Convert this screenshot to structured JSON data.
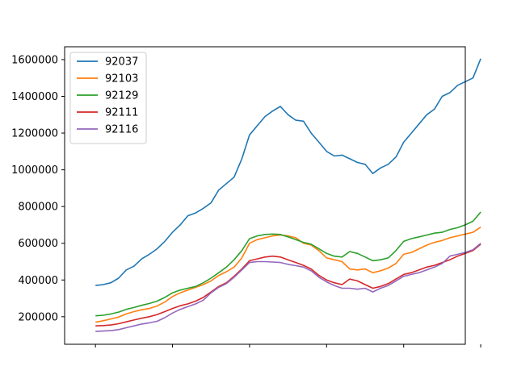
{
  "chart_data": {
    "type": "line",
    "title": "",
    "xlabel": "",
    "ylabel": "",
    "xlim": [
      -20,
      240
    ],
    "ylim": [
      50000,
      1670000
    ],
    "x_ticks": [
      0,
      50,
      100,
      150,
      200,
      250
    ],
    "x_tick_labels": [
      "",
      "",
      "",
      "",
      "",
      ""
    ],
    "y_ticks": [
      200000,
      400000,
      600000,
      800000,
      1000000,
      1200000,
      1400000,
      1600000
    ],
    "y_tick_labels": [
      "200000",
      "400000",
      "600000",
      "800000",
      "1000000",
      "1200000",
      "1400000",
      "1600000"
    ],
    "grid": false,
    "legend_position": "top-left",
    "series": [
      {
        "name": "92037",
        "color": "#1f77b4",
        "points": [
          [
            0,
            370000
          ],
          [
            5,
            375000
          ],
          [
            10,
            385000
          ],
          [
            15,
            410000
          ],
          [
            20,
            455000
          ],
          [
            25,
            475000
          ],
          [
            30,
            515000
          ],
          [
            35,
            540000
          ],
          [
            40,
            570000
          ],
          [
            45,
            610000
          ],
          [
            50,
            660000
          ],
          [
            55,
            700000
          ],
          [
            60,
            750000
          ],
          [
            65,
            765000
          ],
          [
            70,
            790000
          ],
          [
            75,
            820000
          ],
          [
            80,
            890000
          ],
          [
            85,
            925000
          ],
          [
            90,
            960000
          ],
          [
            95,
            1060000
          ],
          [
            100,
            1190000
          ],
          [
            105,
            1240000
          ],
          [
            110,
            1290000
          ],
          [
            115,
            1320000
          ],
          [
            120,
            1345000
          ],
          [
            125,
            1300000
          ],
          [
            130,
            1270000
          ],
          [
            135,
            1265000
          ],
          [
            140,
            1200000
          ],
          [
            145,
            1150000
          ],
          [
            150,
            1100000
          ],
          [
            155,
            1075000
          ],
          [
            160,
            1080000
          ],
          [
            165,
            1060000
          ],
          [
            170,
            1040000
          ],
          [
            175,
            1030000
          ],
          [
            180,
            980000
          ],
          [
            185,
            1010000
          ],
          [
            190,
            1030000
          ],
          [
            195,
            1070000
          ],
          [
            200,
            1150000
          ],
          [
            205,
            1200000
          ],
          [
            210,
            1250000
          ],
          [
            215,
            1300000
          ],
          [
            220,
            1330000
          ],
          [
            225,
            1400000
          ],
          [
            230,
            1420000
          ],
          [
            235,
            1460000
          ],
          [
            240,
            1480000
          ],
          [
            245,
            1500000
          ],
          [
            250,
            1605000
          ]
        ]
      },
      {
        "name": "92103",
        "color": "#ff7f0e",
        "points": [
          [
            0,
            170000
          ],
          [
            5,
            178000
          ],
          [
            10,
            188000
          ],
          [
            15,
            198000
          ],
          [
            20,
            215000
          ],
          [
            25,
            228000
          ],
          [
            30,
            238000
          ],
          [
            35,
            245000
          ],
          [
            40,
            258000
          ],
          [
            45,
            280000
          ],
          [
            50,
            310000
          ],
          [
            55,
            330000
          ],
          [
            60,
            345000
          ],
          [
            65,
            360000
          ],
          [
            70,
            375000
          ],
          [
            75,
            395000
          ],
          [
            80,
            425000
          ],
          [
            85,
            445000
          ],
          [
            90,
            470000
          ],
          [
            95,
            520000
          ],
          [
            100,
            600000
          ],
          [
            105,
            620000
          ],
          [
            110,
            630000
          ],
          [
            115,
            640000
          ],
          [
            120,
            645000
          ],
          [
            125,
            640000
          ],
          [
            130,
            630000
          ],
          [
            135,
            600000
          ],
          [
            140,
            590000
          ],
          [
            145,
            560000
          ],
          [
            150,
            520000
          ],
          [
            155,
            510000
          ],
          [
            160,
            500000
          ],
          [
            165,
            460000
          ],
          [
            170,
            455000
          ],
          [
            175,
            460000
          ],
          [
            180,
            440000
          ],
          [
            185,
            450000
          ],
          [
            190,
            465000
          ],
          [
            195,
            490000
          ],
          [
            200,
            540000
          ],
          [
            205,
            550000
          ],
          [
            210,
            570000
          ],
          [
            215,
            590000
          ],
          [
            220,
            605000
          ],
          [
            225,
            615000
          ],
          [
            230,
            630000
          ],
          [
            235,
            640000
          ],
          [
            240,
            650000
          ],
          [
            245,
            660000
          ],
          [
            250,
            688000
          ]
        ]
      },
      {
        "name": "92129",
        "color": "#2ca02c",
        "points": [
          [
            0,
            205000
          ],
          [
            5,
            208000
          ],
          [
            10,
            215000
          ],
          [
            15,
            225000
          ],
          [
            20,
            240000
          ],
          [
            25,
            250000
          ],
          [
            30,
            262000
          ],
          [
            35,
            272000
          ],
          [
            40,
            285000
          ],
          [
            45,
            305000
          ],
          [
            50,
            330000
          ],
          [
            55,
            345000
          ],
          [
            60,
            355000
          ],
          [
            65,
            365000
          ],
          [
            70,
            385000
          ],
          [
            75,
            410000
          ],
          [
            80,
            440000
          ],
          [
            85,
            470000
          ],
          [
            90,
            510000
          ],
          [
            95,
            560000
          ],
          [
            100,
            625000
          ],
          [
            105,
            640000
          ],
          [
            110,
            648000
          ],
          [
            115,
            650000
          ],
          [
            120,
            648000
          ],
          [
            125,
            635000
          ],
          [
            130,
            620000
          ],
          [
            135,
            605000
          ],
          [
            140,
            595000
          ],
          [
            145,
            570000
          ],
          [
            150,
            545000
          ],
          [
            155,
            530000
          ],
          [
            160,
            525000
          ],
          [
            165,
            555000
          ],
          [
            170,
            545000
          ],
          [
            175,
            525000
          ],
          [
            180,
            505000
          ],
          [
            185,
            510000
          ],
          [
            190,
            520000
          ],
          [
            195,
            560000
          ],
          [
            200,
            610000
          ],
          [
            205,
            625000
          ],
          [
            210,
            635000
          ],
          [
            215,
            645000
          ],
          [
            220,
            655000
          ],
          [
            225,
            660000
          ],
          [
            230,
            675000
          ],
          [
            235,
            685000
          ],
          [
            240,
            700000
          ],
          [
            245,
            720000
          ],
          [
            250,
            770000
          ]
        ]
      },
      {
        "name": "92111",
        "color": "#d62728",
        "points": [
          [
            0,
            150000
          ],
          [
            5,
            152000
          ],
          [
            10,
            155000
          ],
          [
            15,
            162000
          ],
          [
            20,
            172000
          ],
          [
            25,
            182000
          ],
          [
            30,
            192000
          ],
          [
            35,
            200000
          ],
          [
            40,
            212000
          ],
          [
            45,
            228000
          ],
          [
            50,
            245000
          ],
          [
            55,
            260000
          ],
          [
            60,
            270000
          ],
          [
            65,
            285000
          ],
          [
            70,
            305000
          ],
          [
            75,
            335000
          ],
          [
            80,
            365000
          ],
          [
            85,
            385000
          ],
          [
            90,
            420000
          ],
          [
            95,
            460000
          ],
          [
            100,
            505000
          ],
          [
            105,
            515000
          ],
          [
            110,
            525000
          ],
          [
            115,
            530000
          ],
          [
            120,
            525000
          ],
          [
            125,
            510000
          ],
          [
            130,
            495000
          ],
          [
            135,
            480000
          ],
          [
            140,
            460000
          ],
          [
            145,
            425000
          ],
          [
            150,
            400000
          ],
          [
            155,
            385000
          ],
          [
            160,
            375000
          ],
          [
            165,
            405000
          ],
          [
            170,
            395000
          ],
          [
            175,
            375000
          ],
          [
            180,
            355000
          ],
          [
            185,
            365000
          ],
          [
            190,
            380000
          ],
          [
            195,
            405000
          ],
          [
            200,
            430000
          ],
          [
            205,
            440000
          ],
          [
            210,
            455000
          ],
          [
            215,
            470000
          ],
          [
            220,
            480000
          ],
          [
            225,
            495000
          ],
          [
            230,
            510000
          ],
          [
            235,
            530000
          ],
          [
            240,
            545000
          ],
          [
            245,
            560000
          ],
          [
            250,
            595000
          ]
        ]
      },
      {
        "name": "92116",
        "color": "#9467bd",
        "points": [
          [
            0,
            120000
          ],
          [
            5,
            122000
          ],
          [
            10,
            124000
          ],
          [
            15,
            130000
          ],
          [
            20,
            140000
          ],
          [
            25,
            150000
          ],
          [
            30,
            160000
          ],
          [
            35,
            167000
          ],
          [
            40,
            175000
          ],
          [
            45,
            195000
          ],
          [
            50,
            220000
          ],
          [
            55,
            240000
          ],
          [
            60,
            255000
          ],
          [
            65,
            270000
          ],
          [
            70,
            290000
          ],
          [
            75,
            330000
          ],
          [
            80,
            360000
          ],
          [
            85,
            380000
          ],
          [
            90,
            415000
          ],
          [
            95,
            455000
          ],
          [
            100,
            495000
          ],
          [
            105,
            500000
          ],
          [
            110,
            500000
          ],
          [
            115,
            498000
          ],
          [
            120,
            495000
          ],
          [
            125,
            485000
          ],
          [
            130,
            478000
          ],
          [
            135,
            470000
          ],
          [
            140,
            450000
          ],
          [
            145,
            415000
          ],
          [
            150,
            390000
          ],
          [
            155,
            370000
          ],
          [
            160,
            355000
          ],
          [
            165,
            355000
          ],
          [
            170,
            350000
          ],
          [
            175,
            355000
          ],
          [
            180,
            335000
          ],
          [
            185,
            355000
          ],
          [
            190,
            370000
          ],
          [
            195,
            395000
          ],
          [
            200,
            420000
          ],
          [
            205,
            430000
          ],
          [
            210,
            440000
          ],
          [
            215,
            455000
          ],
          [
            220,
            470000
          ],
          [
            225,
            490000
          ],
          [
            230,
            530000
          ],
          [
            235,
            540000
          ],
          [
            240,
            550000
          ],
          [
            245,
            565000
          ],
          [
            250,
            600000
          ]
        ]
      }
    ]
  }
}
